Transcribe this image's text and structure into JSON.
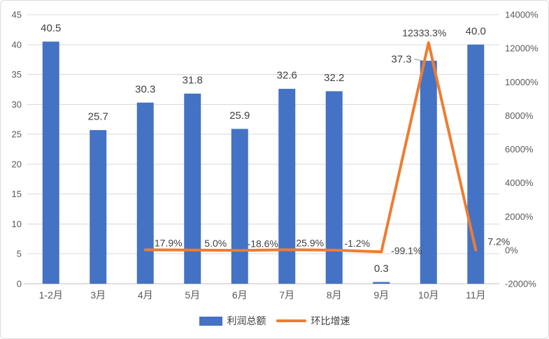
{
  "chart_data": {
    "type": "combo",
    "title": "",
    "categories": [
      "1-2月",
      "3月",
      "4月",
      "5月",
      "6月",
      "7月",
      "8月",
      "9月",
      "10月",
      "11月"
    ],
    "series": [
      {
        "name": "利润总额",
        "type": "bar",
        "axis": "left",
        "color": "#4472C4",
        "values": [
          40.5,
          25.7,
          30.3,
          31.8,
          25.9,
          32.6,
          32.2,
          0.3,
          37.3,
          40.0
        ],
        "data_labels": [
          "40.5",
          "25.7",
          "30.3",
          "31.8",
          "25.9",
          "32.6",
          "32.2",
          "0.3",
          "37.3",
          "40.0"
        ]
      },
      {
        "name": "环比增速",
        "type": "line",
        "axis": "right",
        "color": "#ED7D31",
        "values": [
          null,
          null,
          17.9,
          5.0,
          -18.6,
          25.9,
          -1.2,
          -99.1,
          12333.3,
          7.2
        ],
        "data_labels": [
          null,
          null,
          "17.9%",
          "5.0%",
          "-18.6%",
          "25.9%",
          "-1.2%",
          "-99.1%",
          "12333.3%",
          "7.2%"
        ]
      }
    ],
    "left_axis": {
      "min": 0,
      "max": 45,
      "step": 5,
      "tick_labels": [
        "0",
        "5",
        "10",
        "15",
        "20",
        "25",
        "30",
        "35",
        "40",
        "45"
      ]
    },
    "right_axis": {
      "min": -2000,
      "max": 14000,
      "step": 2000,
      "tick_labels": [
        "-2000%",
        "0%",
        "2000%",
        "4000%",
        "6000%",
        "8000%",
        "10000%",
        "12000%",
        "14000%"
      ]
    },
    "legend": {
      "position": "bottom",
      "items": [
        "利润总额",
        "环比增速"
      ]
    },
    "grid": true,
    "colors": {
      "bar": "#4472C4",
      "line": "#ED7D31",
      "gridline": "#D9D9D9",
      "axis_line": "#BFBFBF",
      "tick_text": "#595959",
      "data_label_text": "#404040",
      "leader_line": "#A6A6A6",
      "frame_border": "#DCDCDC"
    }
  }
}
